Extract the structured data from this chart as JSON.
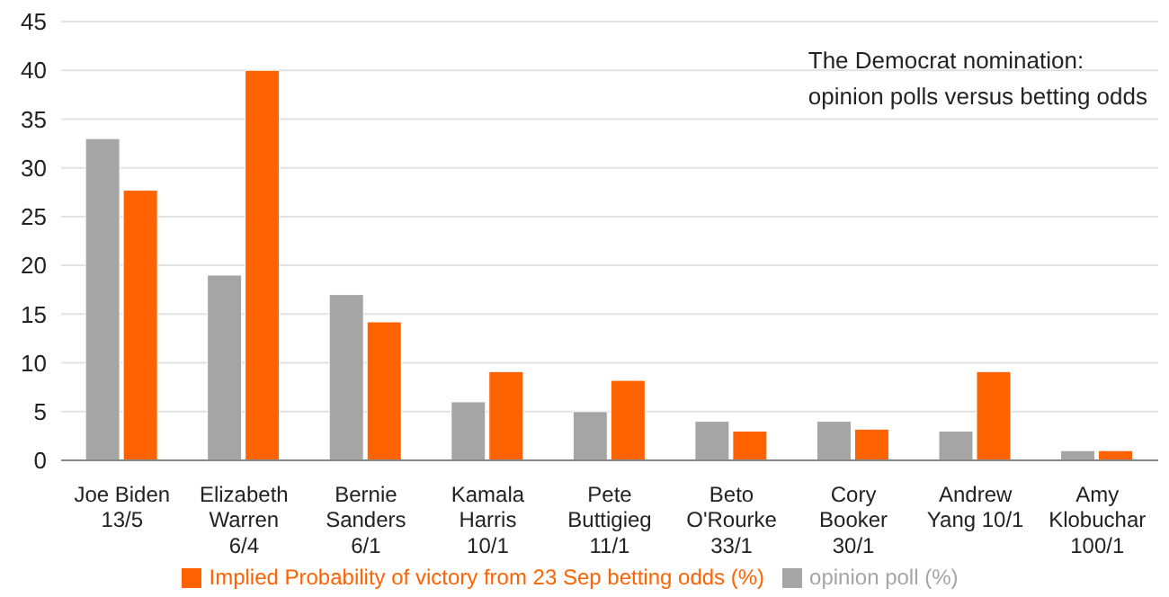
{
  "chart_data": {
    "type": "bar",
    "categories": [
      "Joe Biden\n13/5",
      "Elizabeth\nWarren\n6/4",
      "Bernie\nSanders\n6/1",
      "Kamala\nHarris\n10/1",
      "Pete\nButtigieg\n11/1",
      "Beto\nO'Rourke\n33/1",
      "Cory\nBooker\n30/1",
      "Andrew\nYang 10/1",
      "Amy\nKlobuchar\n100/1"
    ],
    "series": [
      {
        "name": "opinion poll (%)",
        "color": "#a5a5a5",
        "values": [
          33,
          19,
          17,
          6,
          5,
          4,
          4,
          3,
          1
        ]
      },
      {
        "name": "Implied Probability of victory from 23 Sep betting odds (%)",
        "color": "#ff6200",
        "values": [
          27.7,
          40,
          14.2,
          9.1,
          8.2,
          3,
          3.2,
          9.1,
          1
        ]
      }
    ],
    "ylim": [
      0,
      45
    ],
    "yticks": [
      0,
      5,
      10,
      15,
      20,
      25,
      30,
      35,
      40,
      45
    ],
    "grid": "y",
    "legend": "bottom",
    "annotations": [
      "The Democrat nomination:\nopinion polls versus betting odds"
    ]
  }
}
